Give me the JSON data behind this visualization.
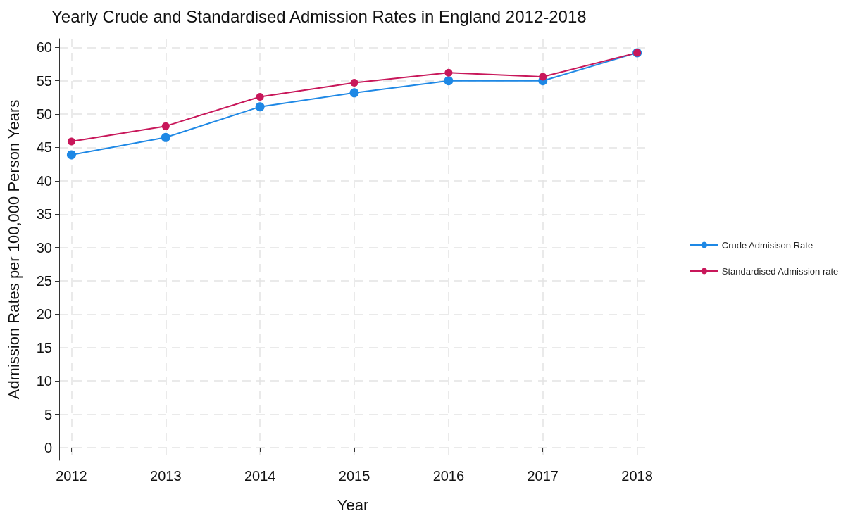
{
  "chart_data": {
    "type": "line",
    "title": "Yearly Crude and Standardised Admission Rates in England 2012-2018",
    "xlabel": "Year",
    "ylabel": "Admission Rates per 100,000 Person Years",
    "x": [
      2012,
      2013,
      2014,
      2015,
      2016,
      2017,
      2018
    ],
    "series": [
      {
        "name": "Crude Admisison Rate",
        "color": "#1e88e5",
        "values": [
          43.9,
          46.5,
          51.1,
          53.2,
          55.0,
          55.0,
          59.2
        ]
      },
      {
        "name": "Standardised Admission rate",
        "color": "#c8175a",
        "values": [
          45.9,
          48.2,
          52.6,
          54.7,
          56.2,
          55.6,
          59.2
        ]
      }
    ],
    "xlim": [
      2011.87,
      2018.1
    ],
    "xticks": [
      2012,
      2013,
      2014,
      2015,
      2016,
      2017,
      2018
    ],
    "ylim": [
      -1.9,
      61.3
    ],
    "yticks": [
      0,
      5,
      10,
      15,
      20,
      25,
      30,
      35,
      40,
      45,
      50,
      55,
      60
    ],
    "grid": true,
    "legend": "right",
    "marker": "circle",
    "line_style": "solid"
  }
}
